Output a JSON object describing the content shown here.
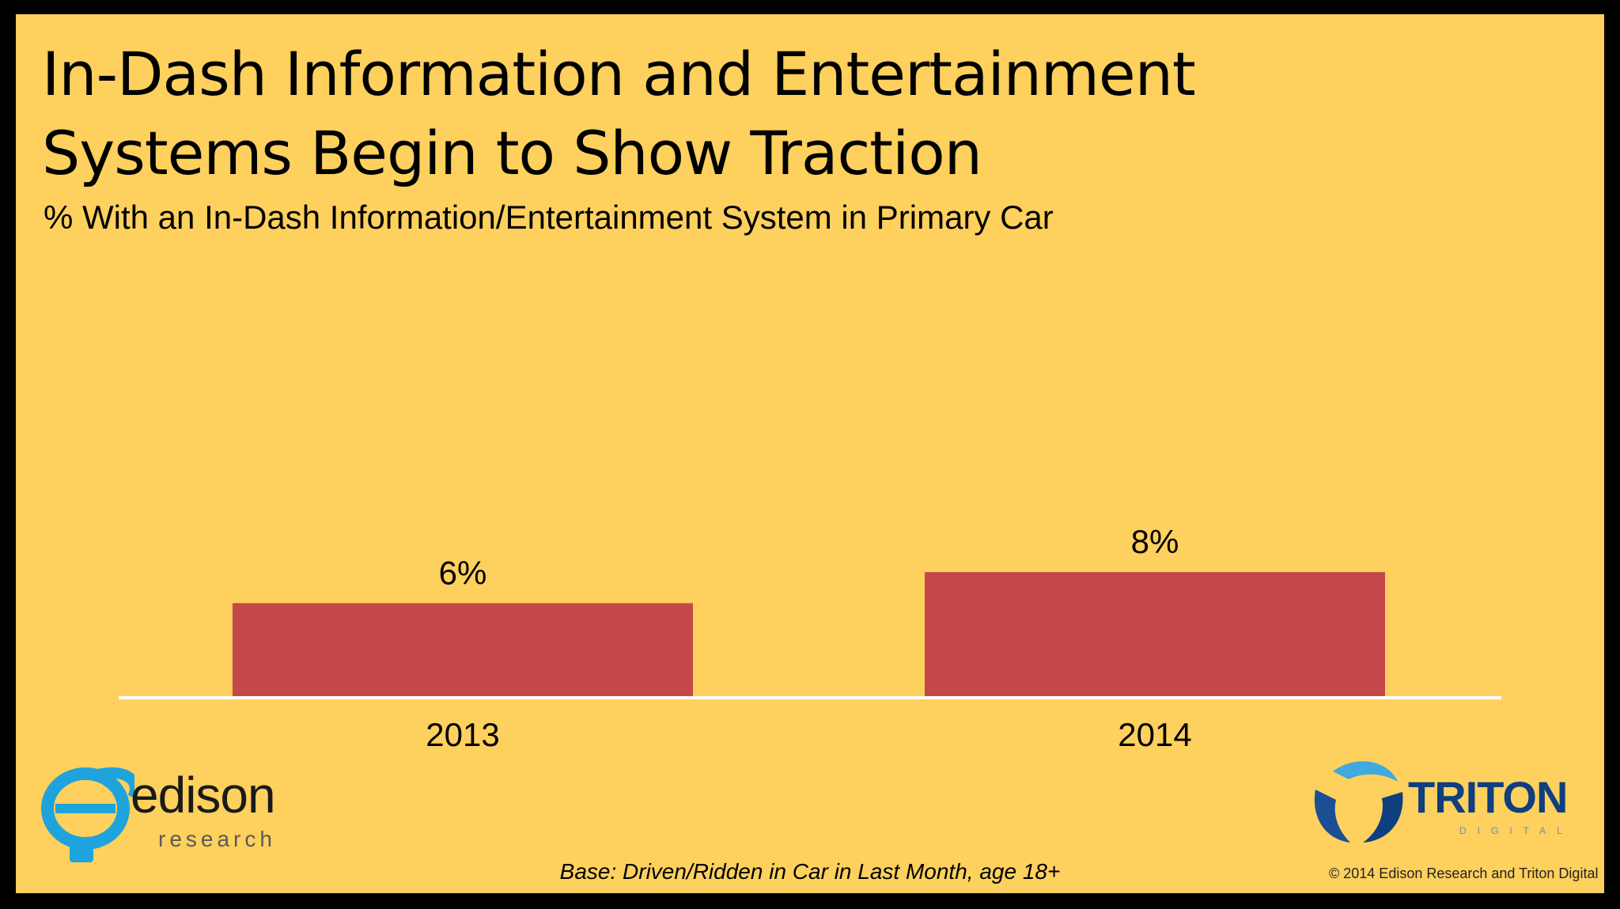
{
  "title_line1": "In-Dash Information and Entertainment",
  "title_line2": "Systems Begin to Show Traction",
  "subtitle": "% With an In-Dash Information/Entertainment System in Primary Car",
  "base_note": "Base: Driven/Ridden in Car in Last Month, age 18+",
  "copyright": "© 2014 Edison Research and Triton Digital",
  "logos": {
    "edison": {
      "word": "edison",
      "sub": "research"
    },
    "triton": {
      "word": "TRITON",
      "sub": "DIGITAL"
    }
  },
  "colors": {
    "background": "#FED05D",
    "bar": "#C4474A",
    "frame": "#000000",
    "baseline": "#FFFFFF"
  },
  "chart_data": {
    "type": "bar",
    "categories": [
      "2013",
      "2014"
    ],
    "values": [
      6,
      8
    ],
    "value_labels": [
      "6%",
      "8%"
    ],
    "title": "In-Dash Information and Entertainment Systems Begin to Show Traction",
    "subtitle": "% With an In-Dash Information/Entertainment System in Primary Car",
    "xlabel": "",
    "ylabel": "",
    "unit": "%",
    "grid": false,
    "legend": "none"
  }
}
